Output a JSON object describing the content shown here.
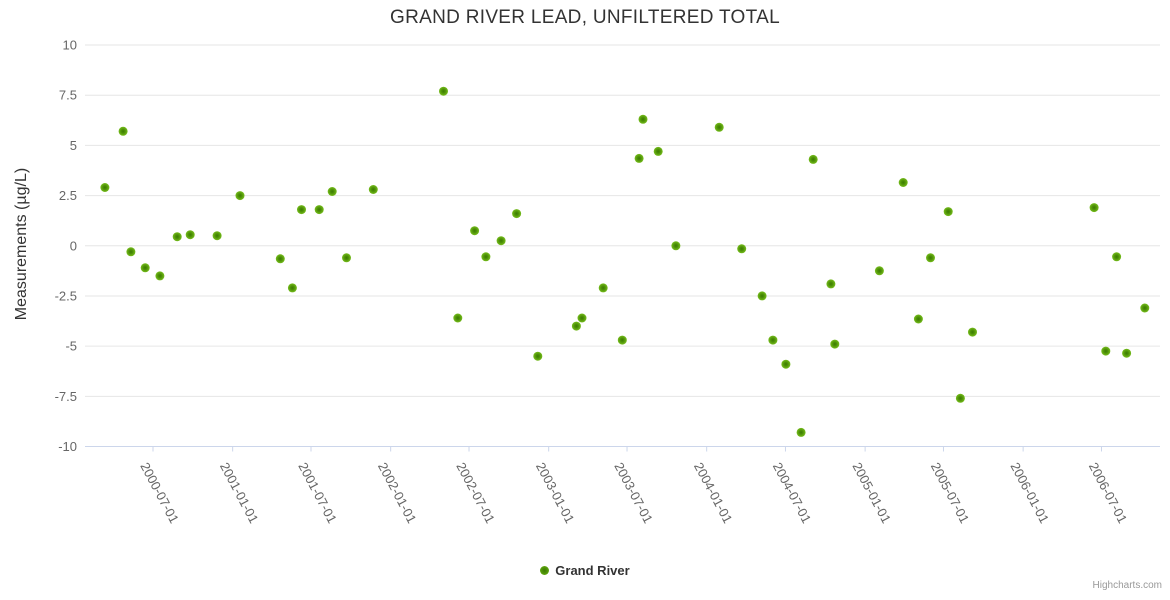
{
  "chart_data": {
    "type": "scatter",
    "title": "GRAND RIVER LEAD, UNFILTERED TOTAL",
    "xlabel": "",
    "ylabel": "Measurements (µg/L)",
    "ylim": [
      -10,
      10
    ],
    "yticks": [
      10,
      7.5,
      5,
      2.5,
      0,
      -2.5,
      -5,
      -7.5,
      -10
    ],
    "xticks": [
      "2000-07-01",
      "2001-01-01",
      "2001-07-01",
      "2002-01-01",
      "2002-07-01",
      "2003-01-01",
      "2003-07-01",
      "2004-01-01",
      "2004-07-01",
      "2005-01-01",
      "2005-07-01",
      "2006-01-01",
      "2006-07-01"
    ],
    "grid": true,
    "legend_position": "bottom-center",
    "marker_color": "#5a9e0e",
    "gridline_color": "#e6e6e6",
    "axis_line_color": "#ccd6eb",
    "series": [
      {
        "name": "Grand River",
        "color": "#5a9e0e",
        "points": [
          [
            "2000-03-12",
            2.9
          ],
          [
            "2000-04-23",
            5.7
          ],
          [
            "2000-05-11",
            -0.3
          ],
          [
            "2000-06-13",
            -1.1
          ],
          [
            "2000-07-17",
            -1.5
          ],
          [
            "2000-08-26",
            0.45
          ],
          [
            "2000-09-25",
            0.55
          ],
          [
            "2000-11-26",
            0.5
          ],
          [
            "2001-01-18",
            2.5
          ],
          [
            "2001-04-21",
            -0.65
          ],
          [
            "2001-05-19",
            -2.1
          ],
          [
            "2001-06-09",
            1.8
          ],
          [
            "2001-07-20",
            1.8
          ],
          [
            "2001-08-19",
            2.7
          ],
          [
            "2001-09-21",
            -0.6
          ],
          [
            "2001-11-22",
            2.8
          ],
          [
            "2002-05-03",
            7.7
          ],
          [
            "2002-06-05",
            -3.6
          ],
          [
            "2002-07-14",
            0.75
          ],
          [
            "2002-08-09",
            -0.55
          ],
          [
            "2002-09-13",
            0.25
          ],
          [
            "2002-10-19",
            1.6
          ],
          [
            "2002-12-07",
            -5.5
          ],
          [
            "2003-03-06",
            -4.0
          ],
          [
            "2003-03-19",
            -3.6
          ],
          [
            "2003-05-07",
            -2.1
          ],
          [
            "2003-06-20",
            -4.7
          ],
          [
            "2003-07-29",
            4.35
          ],
          [
            "2003-08-07",
            6.3
          ],
          [
            "2003-09-11",
            4.7
          ],
          [
            "2003-10-22",
            0.0
          ],
          [
            "2004-01-30",
            5.9
          ],
          [
            "2004-03-22",
            -0.15
          ],
          [
            "2004-05-08",
            -2.5
          ],
          [
            "2004-06-02",
            -4.7
          ],
          [
            "2004-07-02",
            -5.9
          ],
          [
            "2004-08-06",
            -9.3
          ],
          [
            "2004-09-03",
            4.3
          ],
          [
            "2004-10-14",
            -1.9
          ],
          [
            "2004-10-23",
            -4.9
          ],
          [
            "2005-02-03",
            -1.25
          ],
          [
            "2005-03-30",
            3.15
          ],
          [
            "2005-05-04",
            -3.65
          ],
          [
            "2005-06-01",
            -0.6
          ],
          [
            "2005-07-12",
            1.7
          ],
          [
            "2005-08-09",
            -7.6
          ],
          [
            "2005-09-06",
            -4.3
          ],
          [
            "2006-06-14",
            1.9
          ],
          [
            "2006-07-11",
            -5.25
          ],
          [
            "2006-08-05",
            -0.55
          ],
          [
            "2006-08-28",
            -5.35
          ],
          [
            "2006-10-09",
            -3.1
          ]
        ]
      }
    ]
  },
  "credits": "Highcharts.com"
}
